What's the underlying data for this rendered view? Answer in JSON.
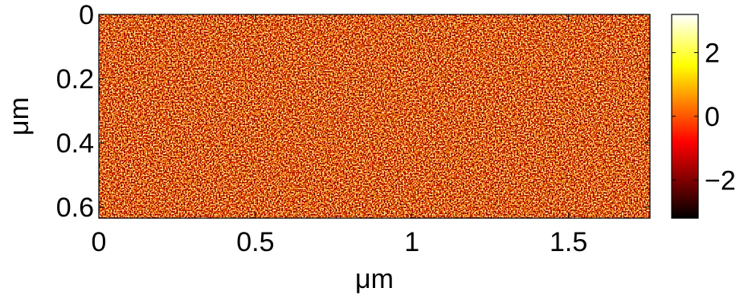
{
  "chart_data": {
    "type": "heatmap",
    "xlabel": "μm",
    "ylabel": "μm",
    "xlim": [
      0,
      1.76
    ],
    "xticks": [
      0,
      0.5,
      1,
      1.5
    ],
    "ylim": [
      0,
      0.635
    ],
    "yticks": [
      0,
      0.2,
      0.4,
      0.6
    ],
    "y_reversed": true,
    "colormap": "hot",
    "clim": [
      -3.2,
      3.2
    ],
    "cticks": [
      {
        "value": -2,
        "label": "−2"
      },
      0,
      2
    ]
  }
}
